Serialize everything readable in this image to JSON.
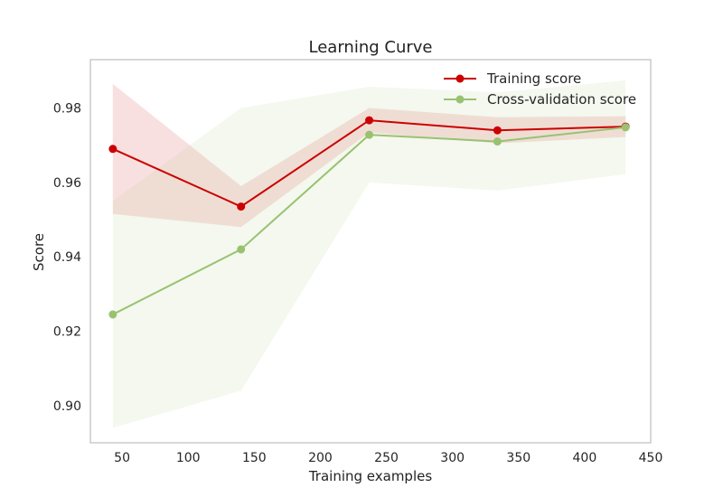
{
  "chart_data": {
    "type": "line",
    "title": "Learning Curve",
    "xlabel": "Training examples",
    "ylabel": "Score",
    "xlim": [
      26,
      450
    ],
    "ylim": [
      0.89,
      0.993
    ],
    "xticks": [
      50,
      100,
      150,
      200,
      250,
      300,
      350,
      400,
      450
    ],
    "yticks": [
      0.9,
      0.92,
      0.94,
      0.96,
      0.98
    ],
    "xtick_labels": [
      "50",
      "100",
      "150",
      "200",
      "250",
      "300",
      "350",
      "400",
      "450"
    ],
    "ytick_labels": [
      "0.90",
      "0.92",
      "0.94",
      "0.96",
      "0.98"
    ],
    "grid": false,
    "legend_position": "top-right",
    "x": [
      43,
      140,
      237,
      334,
      431
    ],
    "series": [
      {
        "name": "Training score",
        "color": "#cc0000",
        "band_color": "#e06666",
        "values": [
          0.969,
          0.9535,
          0.9767,
          0.974,
          0.975
        ],
        "upper": [
          0.9865,
          0.959,
          0.98,
          0.9775,
          0.9778
        ],
        "lower": [
          0.9515,
          0.948,
          0.9734,
          0.9705,
          0.9722
        ]
      },
      {
        "name": "Cross-validation score",
        "color": "#99c270",
        "band_color": "#b5d394",
        "values": [
          0.9245,
          0.942,
          0.9728,
          0.971,
          0.9748
        ],
        "upper": [
          0.955,
          0.98,
          0.9857,
          0.9842,
          0.9874
        ],
        "lower": [
          0.894,
          0.904,
          0.96,
          0.9578,
          0.9622
        ]
      }
    ]
  }
}
